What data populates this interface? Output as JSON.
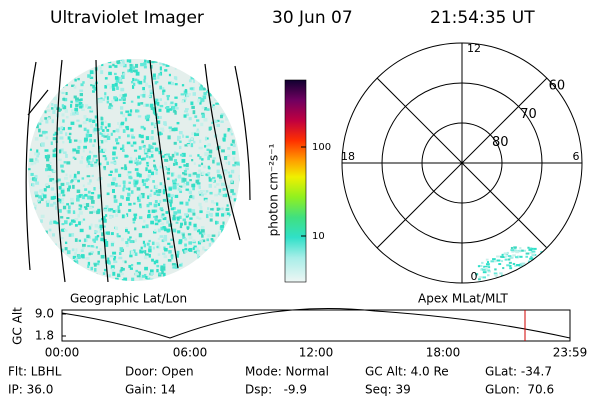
{
  "header": {
    "title": "Ultraviolet Imager",
    "date": "30 Jun 07",
    "time": "21:54:35 UT"
  },
  "colorbar": {
    "label": "photon cm⁻²s⁻¹",
    "ticks": [
      10,
      100
    ],
    "log_scale": true
  },
  "polar_plot": {
    "mlt_labels": [
      12,
      18,
      6,
      0
    ],
    "mlat_labels": [
      60,
      70,
      80
    ]
  },
  "geo_label": "Geographic Lat/Lon",
  "apex_label": "Apex MLat/MLT",
  "altitude_plot": {
    "ylabel": "GC Alt",
    "yticks": [
      {
        "value": 9,
        "label": "9.0"
      },
      1.8
    ],
    "xticks": [
      "00:00",
      "06:00",
      "12:00",
      "18:00",
      "23:59"
    ]
  },
  "footer": {
    "rows": [
      [
        "Flt: LBHL",
        "Door: Open",
        "Mode: Normal",
        "GC Alt: 4.0 Re",
        "GLat: -34.7"
      ],
      [
        "IP: 36.0",
        "Gain: 14",
        "Dsp:   -9.9",
        "Seq: 39",
        "GLon:  70.6"
      ]
    ]
  }
}
